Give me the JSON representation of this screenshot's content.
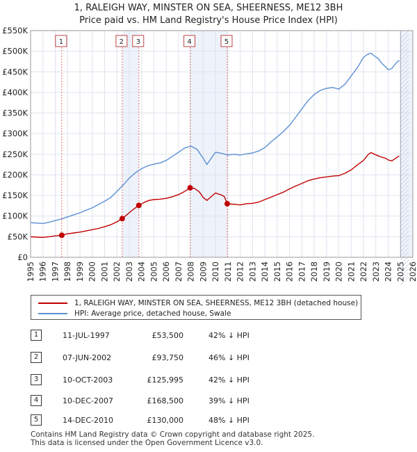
{
  "title_line1": "1, RALEIGH WAY, MINSTER ON SEA, SHEERNESS, ME12 3BH",
  "title_line2": "Price paid vs. HM Land Registry's House Price Index (HPI)",
  "colors": {
    "property": "#c00000",
    "hpi": "#5b8fd4",
    "sale_line": "#e07070",
    "band": "#eef2fa",
    "grid": "#dde3ee"
  },
  "chart_data": {
    "type": "line",
    "xlim": [
      1995,
      2026
    ],
    "ylim": [
      0,
      550000
    ],
    "x_ticks": [
      "1995",
      "1996",
      "1997",
      "1998",
      "1999",
      "2000",
      "2001",
      "2002",
      "2003",
      "2004",
      "2005",
      "2006",
      "2007",
      "2008",
      "2009",
      "2010",
      "2011",
      "2012",
      "2013",
      "2014",
      "2015",
      "2016",
      "2017",
      "2018",
      "2019",
      "2020",
      "2021",
      "2022",
      "2023",
      "2024",
      "2025",
      "2026"
    ],
    "y_ticks": [
      {
        "value": 0,
        "label": "£0"
      },
      {
        "value": 50000,
        "label": "£50K"
      },
      {
        "value": 100000,
        "label": "£100K"
      },
      {
        "value": 150000,
        "label": "£150K"
      },
      {
        "value": 200000,
        "label": "£200K"
      },
      {
        "value": 250000,
        "label": "£250K"
      },
      {
        "value": 300000,
        "label": "£300K"
      },
      {
        "value": 350000,
        "label": "£350K"
      },
      {
        "value": 400000,
        "label": "£400K"
      },
      {
        "value": 450000,
        "label": "£450K"
      },
      {
        "value": 500000,
        "label": "£500K"
      },
      {
        "value": 550000,
        "label": "£550K"
      }
    ],
    "series": [
      {
        "name": "1, RALEIGH WAY, MINSTER ON SEA, SHEERNESS, ME12 3BH (detached house)",
        "x": [
          1995.0,
          1995.5,
          1996.0,
          1996.5,
          1997.0,
          1997.53,
          1998.0,
          1998.5,
          1999.0,
          1999.5,
          2000.0,
          2000.5,
          2001.0,
          2001.5,
          2002.0,
          2002.43,
          2002.8,
          2003.2,
          2003.5,
          2003.78,
          2004.2,
          2004.6,
          2005.0,
          2005.5,
          2006.0,
          2006.5,
          2007.0,
          2007.5,
          2007.94,
          2008.3,
          2008.7,
          2009.0,
          2009.3,
          2009.6,
          2010.0,
          2010.4,
          2010.7,
          2010.95,
          2011.3,
          2011.7,
          2012.0,
          2012.5,
          2013.0,
          2013.5,
          2014.0,
          2014.5,
          2015.0,
          2015.5,
          2016.0,
          2016.5,
          2017.0,
          2017.5,
          2018.0,
          2018.5,
          2019.0,
          2019.5,
          2020.0,
          2020.5,
          2021.0,
          2021.5,
          2022.0,
          2022.4,
          2022.6,
          2022.9,
          2023.2,
          2023.5,
          2023.8,
          2024.0,
          2024.3,
          2024.6,
          2024.9
        ],
        "y": [
          50000,
          49000,
          48500,
          50000,
          52000,
          53500,
          57000,
          59000,
          61000,
          64000,
          67000,
          70000,
          74000,
          79000,
          86000,
          93750,
          103000,
          113000,
          120000,
          125995,
          133000,
          138000,
          140000,
          141000,
          143000,
          147000,
          152000,
          160000,
          168500,
          167000,
          158000,
          145000,
          138000,
          146000,
          156000,
          152000,
          148000,
          130000,
          129000,
          128000,
          127000,
          130000,
          131000,
          134000,
          140000,
          146000,
          152000,
          158000,
          166000,
          173000,
          179000,
          186000,
          190000,
          193000,
          195000,
          197000,
          198000,
          204000,
          212000,
          224000,
          235000,
          250000,
          254000,
          250000,
          246000,
          243000,
          240000,
          236000,
          234000,
          240000,
          246000
        ]
      },
      {
        "name": "HPI: Average price, detached house, Swale",
        "x": [
          1995.0,
          1995.5,
          1996.0,
          1996.5,
          1997.0,
          1997.5,
          1998.0,
          1998.5,
          1999.0,
          1999.5,
          2000.0,
          2000.5,
          2001.0,
          2001.5,
          2002.0,
          2002.5,
          2003.0,
          2003.5,
          2004.0,
          2004.5,
          2005.0,
          2005.5,
          2006.0,
          2006.5,
          2007.0,
          2007.5,
          2008.0,
          2008.5,
          2009.0,
          2009.3,
          2009.6,
          2010.0,
          2010.5,
          2011.0,
          2011.5,
          2012.0,
          2012.5,
          2013.0,
          2013.5,
          2014.0,
          2014.5,
          2015.0,
          2015.5,
          2016.0,
          2016.5,
          2017.0,
          2017.5,
          2018.0,
          2018.5,
          2019.0,
          2019.5,
          2020.0,
          2020.5,
          2021.0,
          2021.5,
          2022.0,
          2022.3,
          2022.6,
          2022.9,
          2023.2,
          2023.5,
          2023.8,
          2024.0,
          2024.3,
          2024.6,
          2024.9
        ],
        "y": [
          84000,
          83000,
          82000,
          85000,
          89000,
          93000,
          98000,
          103000,
          108000,
          114000,
          120000,
          128000,
          136000,
          145000,
          160000,
          175000,
          192000,
          205000,
          215000,
          222000,
          226000,
          229000,
          235000,
          245000,
          255000,
          265000,
          270000,
          262000,
          240000,
          225000,
          238000,
          255000,
          252000,
          248000,
          250000,
          248000,
          251000,
          253000,
          258000,
          266000,
          280000,
          292000,
          305000,
          320000,
          340000,
          360000,
          380000,
          395000,
          405000,
          410000,
          412000,
          408000,
          420000,
          440000,
          460000,
          485000,
          492000,
          495000,
          488000,
          482000,
          470000,
          462000,
          455000,
          458000,
          470000,
          478000
        ]
      }
    ],
    "sales": [
      {
        "label": "1",
        "x": 1997.53,
        "price": 53500
      },
      {
        "label": "2",
        "x": 2002.43,
        "price": 93750
      },
      {
        "label": "3",
        "x": 2003.78,
        "price": 125995
      },
      {
        "label": "4",
        "x": 2007.94,
        "price": 168500
      },
      {
        "label": "5",
        "x": 2010.95,
        "price": 130000
      }
    ],
    "data_end_x": 2025.0
  },
  "legend": {
    "property_label": "1, RALEIGH WAY, MINSTER ON SEA, SHEERNESS, ME12 3BH (detached house)",
    "hpi_label": "HPI: Average price, detached house, Swale"
  },
  "sales_table": [
    {
      "num": "1",
      "date": "11-JUL-1997",
      "price": "£53,500",
      "hpi": "42% ↓ HPI"
    },
    {
      "num": "2",
      "date": "07-JUN-2002",
      "price": "£93,750",
      "hpi": "46% ↓ HPI"
    },
    {
      "num": "3",
      "date": "10-OCT-2003",
      "price": "£125,995",
      "hpi": "42% ↓ HPI"
    },
    {
      "num": "4",
      "date": "10-DEC-2007",
      "price": "£168,500",
      "hpi": "39% ↓ HPI"
    },
    {
      "num": "5",
      "date": "14-DEC-2010",
      "price": "£130,000",
      "hpi": "48% ↓ HPI"
    }
  ],
  "footer": {
    "line1": "Contains HM Land Registry data © Crown copyright and database right 2025.",
    "line2": "This data is licensed under the Open Government Licence v3.0."
  }
}
